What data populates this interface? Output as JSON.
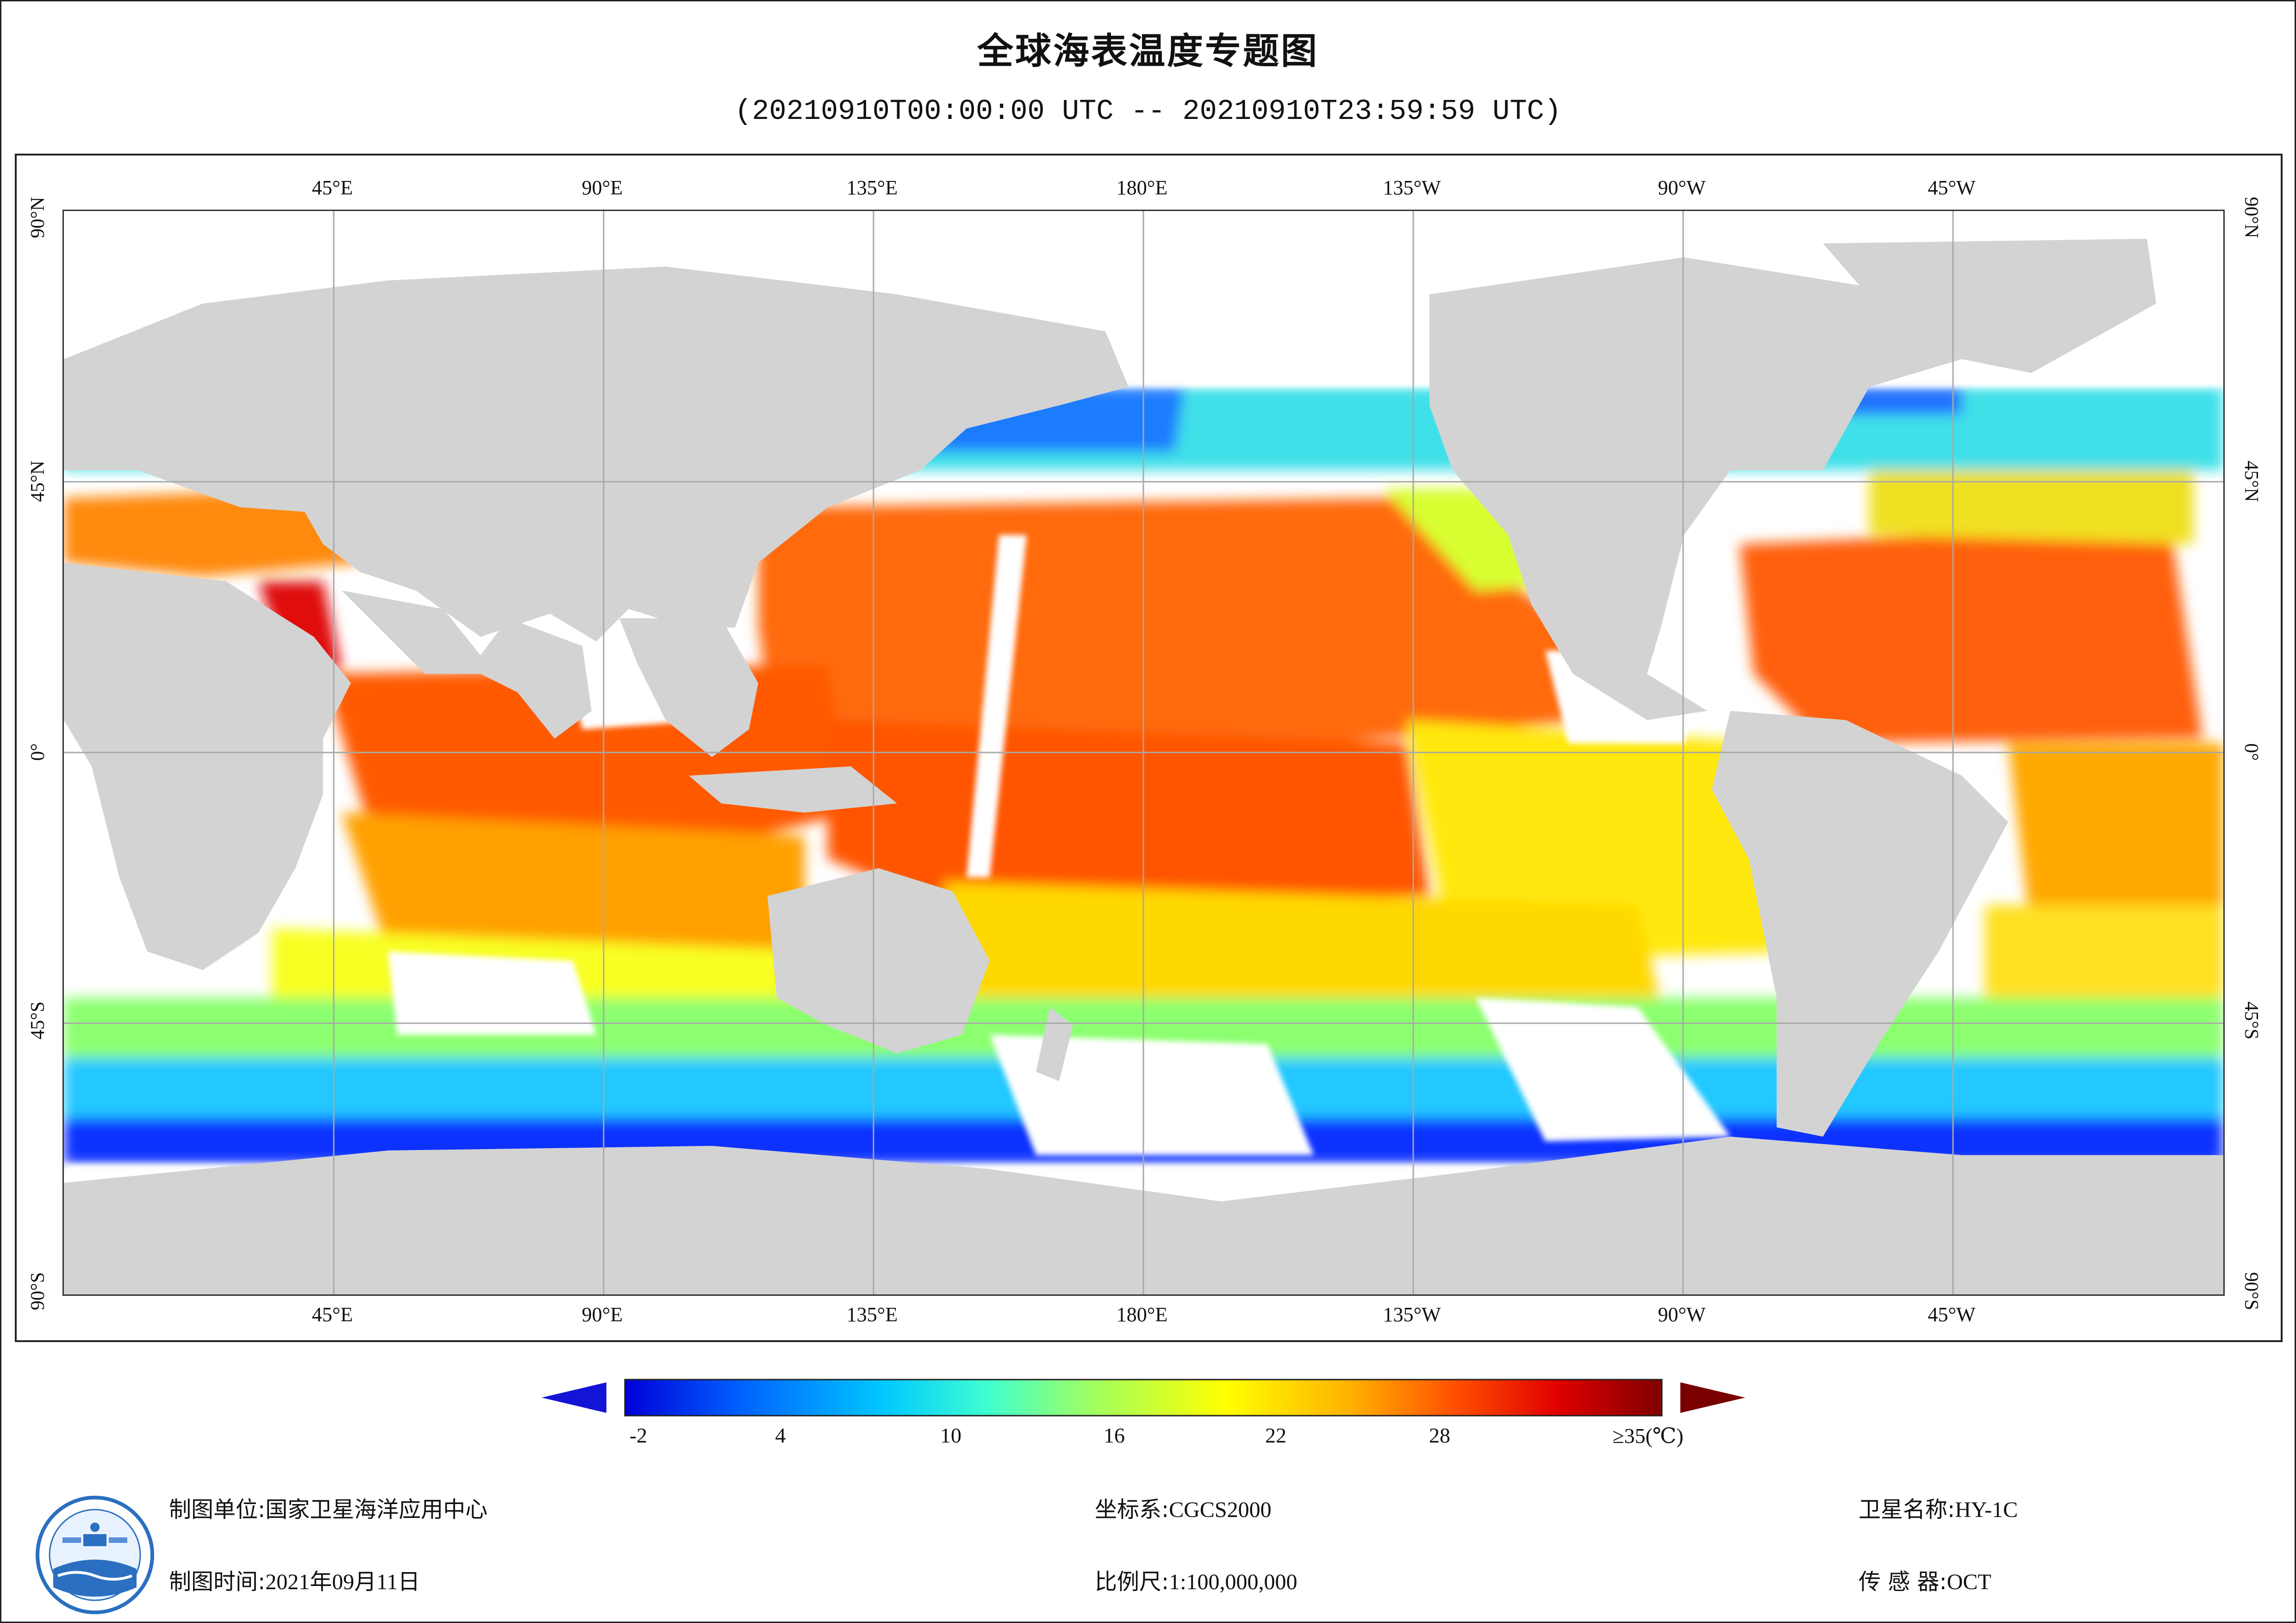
{
  "title": "全球海表温度专题图",
  "subtitle": "(20210910T00:00:00 UTC -- 20210910T23:59:59 UTC)",
  "map": {
    "top_longitude_labels": [
      "45°E",
      "90°E",
      "135°E",
      "180°E",
      "135°W",
      "90°W",
      "45°W"
    ],
    "bottom_longitude_labels": [
      "45°E",
      "90°E",
      "135°E",
      "180°E",
      "135°W",
      "90°W",
      "45°W"
    ],
    "latitude_labels": [
      "90°N",
      "45°N",
      "0°",
      "45°S",
      "90°S"
    ],
    "colors": {
      "land": "#d3d3d3",
      "no_data": "#ffffff",
      "grid": "#a8a8a8"
    }
  },
  "colorbar": {
    "tick_labels": [
      "-2",
      "4",
      "10",
      "16",
      "22",
      "28",
      "≥35(℃)"
    ],
    "min_value": -2,
    "max_value": 35,
    "under_color": "#1414d6",
    "over_color": "#7a0000",
    "stops": [
      "#0000d8",
      "#0060ff",
      "#00c8ff",
      "#40ffd0",
      "#a0ff60",
      "#ffff00",
      "#ffb000",
      "#ff5000",
      "#e00000",
      "#800000"
    ]
  },
  "footer": {
    "producer_label": "制图单位:",
    "producer_value": "国家卫星海洋应用中心",
    "date_label": "制图时间:",
    "date_value": "2021年09月11日",
    "crs_label": "坐标系:",
    "crs_value": "CGCS2000",
    "scale_label": "比例尺:",
    "scale_value": "1:100,000,000",
    "satellite_label": "卫星名称:",
    "satellite_value": "HY-1C",
    "sensor_label": "传 感 器:",
    "sensor_value": "OCT"
  }
}
